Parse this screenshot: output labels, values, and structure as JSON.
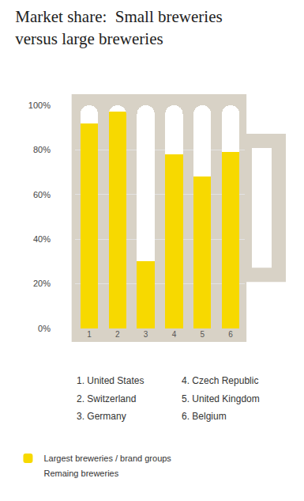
{
  "chart_data": {
    "type": "bar",
    "title": "Market share:  Small breweries versus large breweries",
    "categories": [
      "1",
      "2",
      "3",
      "4",
      "5",
      "6"
    ],
    "series": [
      {
        "name": "Largest breweries / brand groups",
        "color": "#f7d900",
        "values": [
          92,
          97,
          30,
          78,
          68,
          79
        ]
      },
      {
        "name": "Remaing breweries",
        "color": "#ffffff",
        "values": [
          8,
          3,
          70,
          22,
          32,
          21
        ]
      }
    ],
    "stacked": true,
    "ylim": [
      0,
      100
    ],
    "yticks": [
      {
        "value": 0,
        "label": "0%"
      },
      {
        "value": 20,
        "label": "20%"
      },
      {
        "value": 40,
        "label": "40%"
      },
      {
        "value": 60,
        "label": "60%"
      },
      {
        "value": 80,
        "label": "80%"
      },
      {
        "value": 100,
        "label": "100%"
      }
    ],
    "grid": true,
    "legend": "bottom",
    "annotations": [
      "1. United States",
      "2. Switzerland",
      "3. Germany",
      "4. Czech Republic",
      "5. United Kingdom",
      "6. Belgium"
    ]
  }
}
